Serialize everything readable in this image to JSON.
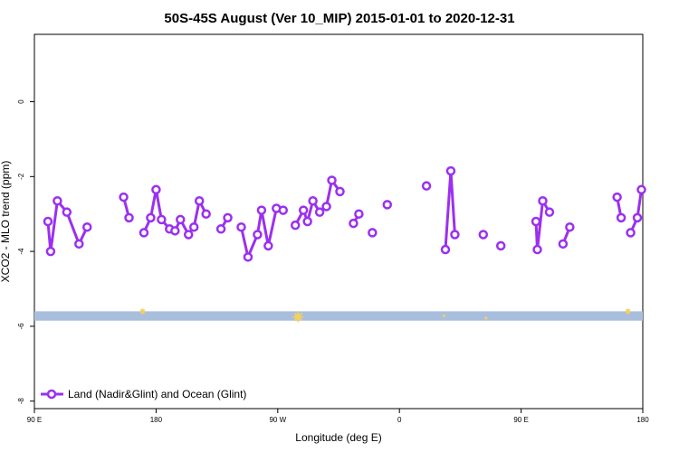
{
  "chart_data": {
    "type": "line",
    "title": "50S-45S August (Ver 10_MIP)   2015-01-01 to 2020-12-31",
    "xlabel": "Longitude (deg E)",
    "ylabel": "XCO2 - MLO trend (ppm)",
    "xlim": [
      90,
      540
    ],
    "ylim": [
      -8.2,
      1.8
    ],
    "x_ticks": [
      {
        "value": 90,
        "label": "90 E"
      },
      {
        "value": 180,
        "label": "180"
      },
      {
        "value": 270,
        "label": "90 W"
      },
      {
        "value": 360,
        "label": "0"
      },
      {
        "value": 450,
        "label": "90 E"
      },
      {
        "value": 540,
        "label": "180"
      }
    ],
    "y_ticks": [
      {
        "value": 0,
        "label": "0"
      },
      {
        "value": -2,
        "label": "-2"
      },
      {
        "value": -4,
        "label": "-4"
      },
      {
        "value": -6,
        "label": "-6"
      },
      {
        "value": -8,
        "label": "-8"
      }
    ],
    "grid": false,
    "legend_position": "bottom-left",
    "series": [
      {
        "name": "Land (Nadir&Glint) and Ocean (Glint)",
        "color": "#9b30f0",
        "segments": [
          [
            [
              100,
              -3.2
            ],
            [
              102,
              -4.0
            ],
            [
              107,
              -2.65
            ],
            [
              114,
              -2.95
            ],
            [
              123,
              -3.8
            ],
            [
              129,
              -3.35
            ]
          ],
          [
            [
              156,
              -2.55
            ],
            [
              160,
              -3.1
            ]
          ],
          [
            [
              171,
              -3.5
            ],
            [
              176,
              -3.1
            ],
            [
              180,
              -2.35
            ],
            [
              184,
              -3.15
            ],
            [
              190,
              -3.4
            ],
            [
              194,
              -3.45
            ],
            [
              198,
              -3.15
            ],
            [
              204,
              -3.55
            ],
            [
              208,
              -3.35
            ],
            [
              212,
              -2.65
            ],
            [
              217,
              -3.0
            ]
          ],
          [
            [
              228,
              -3.4
            ],
            [
              233,
              -3.1
            ]
          ],
          [
            [
              243,
              -3.35
            ],
            [
              248,
              -4.15
            ],
            [
              255,
              -3.55
            ],
            [
              258,
              -2.9
            ],
            [
              263,
              -3.85
            ],
            [
              269,
              -2.85
            ],
            [
              274,
              -2.9
            ]
          ],
          [
            [
              283,
              -3.3
            ],
            [
              289,
              -2.9
            ],
            [
              292,
              -3.2
            ],
            [
              296,
              -2.65
            ],
            [
              301,
              -2.95
            ],
            [
              306,
              -2.8
            ],
            [
              310,
              -2.1
            ],
            [
              316,
              -2.4
            ]
          ],
          [
            [
              326,
              -3.25
            ],
            [
              330,
              -3.0
            ]
          ],
          [
            [
              340,
              -3.5
            ]
          ],
          [
            [
              351,
              -2.75
            ]
          ],
          [
            [
              380,
              -2.25
            ]
          ],
          [
            [
              394,
              -3.95
            ],
            [
              398,
              -1.85
            ],
            [
              401,
              -3.55
            ]
          ],
          [
            [
              422,
              -3.55
            ]
          ],
          [
            [
              435,
              -3.85
            ]
          ],
          [
            [
              461,
              -3.2
            ],
            [
              462,
              -3.95
            ],
            [
              466,
              -2.65
            ],
            [
              471,
              -2.95
            ]
          ],
          [
            [
              481,
              -3.8
            ],
            [
              486,
              -3.35
            ]
          ],
          [
            [
              521,
              -2.55
            ],
            [
              524,
              -3.1
            ]
          ],
          [
            [
              531,
              -3.5
            ],
            [
              536,
              -3.1
            ],
            [
              539,
              -2.35
            ]
          ]
        ]
      }
    ],
    "bottom_band": {
      "y_from": -5.85,
      "y_to": -5.6,
      "color": "#a8bedc"
    },
    "band_markers": [
      {
        "x": 170,
        "y": -5.6,
        "size": "small"
      },
      {
        "x": 285,
        "y": -5.75,
        "size": "large"
      },
      {
        "x": 393,
        "y": -5.72,
        "size": "tiny"
      },
      {
        "x": 424,
        "y": -5.78,
        "size": "tiny"
      },
      {
        "x": 529,
        "y": -5.6,
        "size": "small"
      }
    ],
    "band_marker_color": "#f5d060"
  }
}
